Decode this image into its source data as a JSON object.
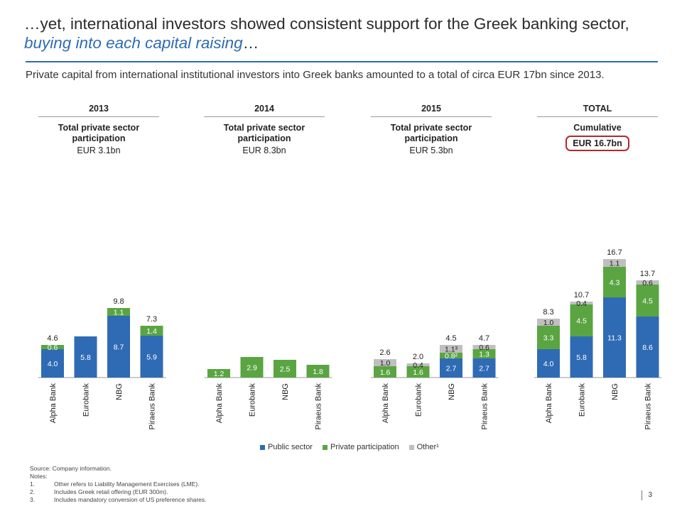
{
  "header": {
    "title_part1": "…yet, international investors showed consistent support for the Greek banking sector, ",
    "title_highlight": "buying into each capital raising",
    "title_part2": "…",
    "subtitle": "Private capital from international institutional investors into Greek banks amounted to a total of circa EUR 17bn since 2013."
  },
  "groups": [
    {
      "year": "2013",
      "label": "Total private sector\nparticipation",
      "amount": "EUR 3.1bn"
    },
    {
      "year": "2014",
      "label": "Total private sector\nparticipation",
      "amount": "EUR 8.3bn"
    },
    {
      "year": "2015",
      "label": "Total private sector\nparticipation",
      "amount": "EUR 5.3bn"
    },
    {
      "year": "TOTAL",
      "label": "Cumulative",
      "amount": "EUR 16.7bn"
    }
  ],
  "colors": {
    "public": "#2f6bb4",
    "private": "#5aa542",
    "other": "#bfbfbf",
    "accent": "#2f6bb4",
    "box": "#b2292e"
  },
  "chart_data": {
    "type": "bar",
    "stacked": true,
    "groups": [
      "2013",
      "2014",
      "2015",
      "TOTAL"
    ],
    "categories": [
      "Alpha Bank",
      "Eurobank",
      "NBG",
      "Piraeus Bank"
    ],
    "series": [
      {
        "name": "Public sector",
        "values": [
          [
            4.0,
            5.8,
            8.7,
            5.9
          ],
          [
            null,
            null,
            null,
            null
          ],
          [
            null,
            null,
            2.7,
            2.7
          ],
          [
            4.0,
            5.8,
            11.3,
            8.6
          ]
        ]
      },
      {
        "name": "Private participation",
        "values": [
          [
            0.6,
            null,
            1.1,
            1.4
          ],
          [
            1.2,
            2.9,
            2.5,
            1.8
          ],
          [
            1.6,
            1.6,
            0.8,
            1.3
          ],
          [
            3.3,
            4.5,
            4.3,
            4.5
          ]
        ]
      },
      {
        "name": "Other¹",
        "values": [
          [
            null,
            null,
            null,
            null
          ],
          [
            null,
            null,
            null,
            null
          ],
          [
            1.0,
            0.4,
            1.1,
            0.6
          ],
          [
            1.0,
            0.4,
            1.1,
            0.6
          ]
        ]
      }
    ],
    "value_labels": {
      "1.5": "0.8²",
      "2.2": "1.1³"
    },
    "totals": [
      [
        "4.6",
        "",
        "9.8",
        "7.3"
      ],
      [
        "",
        "",
        "",
        ""
      ],
      [
        "2.6",
        "2.0",
        "4.5",
        "4.7"
      ],
      [
        "8.3",
        "10.7",
        "16.7",
        "13.7"
      ]
    ],
    "legend": [
      "Public sector",
      "Private participation",
      "Other¹"
    ],
    "legend_position": "bottom"
  },
  "notes": {
    "source": "Source:  Company information.",
    "notes_label": "Notes:",
    "items": [
      {
        "num": "1.",
        "text": "Other refers to Liability Management Exercises (LME)."
      },
      {
        "num": "2.",
        "text": "Includes Greek retail offering (EUR 300m)."
      },
      {
        "num": "3.",
        "text": "Includes mandatory conversion of US preference shares."
      }
    ]
  },
  "page_number": "3"
}
